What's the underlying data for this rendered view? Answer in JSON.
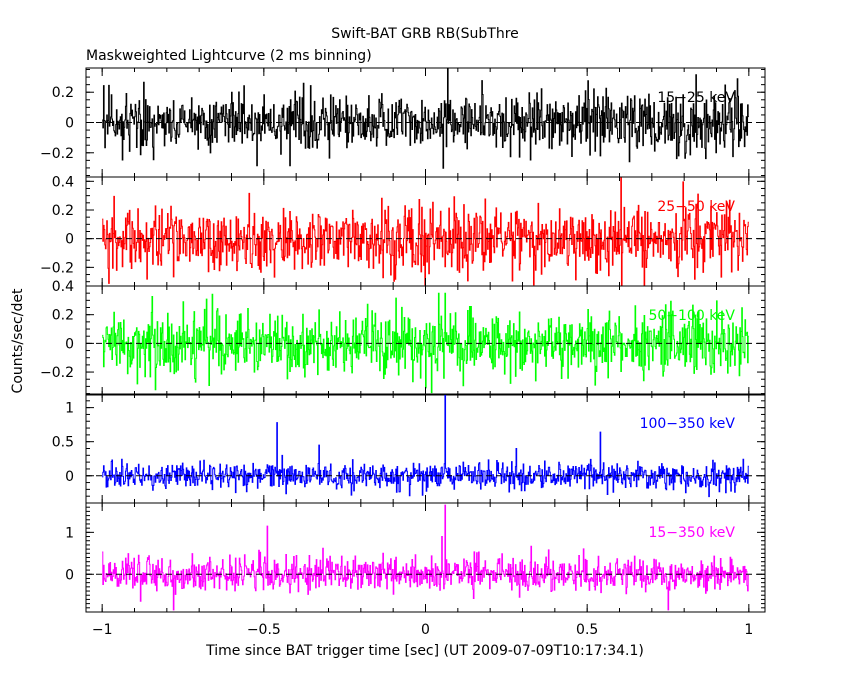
{
  "chart_data": {
    "type": "line",
    "title": "Swift-BAT GRB RB(SubThre",
    "subtitle": "Maskweighted Lightcurve (2 ms binning)",
    "xlabel": "Time since BAT trigger time [sec] (UT 2009-07-09T10:17:34.1)",
    "ylabel": "Counts/sec/det",
    "xlim": [
      -1.05,
      1.05
    ],
    "xticks": [
      -1,
      -0.5,
      0,
      0.5,
      1
    ],
    "xtick_labels": [
      "−1",
      "−0.5",
      "0",
      "0.5",
      "1"
    ],
    "bin_width_sec": 0.002,
    "panels": [
      {
        "name": "15-25 keV",
        "label": "15−25 keV",
        "color": "#000000",
        "ylim": [
          -0.36,
          0.36
        ],
        "yticks": [
          -0.2,
          0,
          0.2
        ],
        "ytick_labels": [
          "−0.2",
          "0",
          "0.2"
        ],
        "noise_sigma": 0.1,
        "spikes": []
      },
      {
        "name": "25-50 keV",
        "label": "25−50 keV",
        "color": "#ff0000",
        "ylim": [
          -0.33,
          0.43
        ],
        "yticks": [
          -0.2,
          0,
          0.2,
          0.4
        ],
        "ytick_labels": [
          "−0.2",
          "0",
          "0.2",
          "0.4"
        ],
        "noise_sigma": 0.12,
        "spikes": []
      },
      {
        "name": "50-100 keV",
        "label": "50−100 keV",
        "color": "#00ff00",
        "ylim": [
          -0.36,
          0.4
        ],
        "yticks": [
          -0.2,
          0,
          0.2,
          0.4
        ],
        "ytick_labels": [
          "−0.2",
          "0",
          "0.2",
          "0.4"
        ],
        "noise_sigma": 0.11,
        "spikes": [
          [
            0.04,
            0.35
          ],
          [
            0.06,
            0.35
          ]
        ]
      },
      {
        "name": "100-350 keV",
        "label": "100−350 keV",
        "color": "#0000ff",
        "ylim": [
          -0.4,
          1.2
        ],
        "yticks": [
          0,
          0.5,
          1
        ],
        "ytick_labels": [
          "0",
          "0.5",
          "1"
        ],
        "noise_sigma": 0.1,
        "spikes": [
          [
            0.06,
            1.18
          ],
          [
            -0.46,
            0.78
          ],
          [
            0.54,
            0.64
          ],
          [
            -0.33,
            0.45
          ],
          [
            0.28,
            0.4
          ]
        ]
      },
      {
        "name": "15-350 keV",
        "label": "15−350 keV",
        "color": "#ff00ff",
        "ylim": [
          -0.9,
          1.7
        ],
        "yticks": [
          0,
          1
        ],
        "ytick_labels": [
          "0",
          "1"
        ],
        "noise_sigma": 0.2,
        "spikes": [
          [
            0.06,
            1.65
          ],
          [
            -0.49,
            1.15
          ],
          [
            0.05,
            0.9
          ],
          [
            -0.78,
            -0.85
          ],
          [
            0.75,
            -0.85
          ]
        ]
      }
    ]
  }
}
